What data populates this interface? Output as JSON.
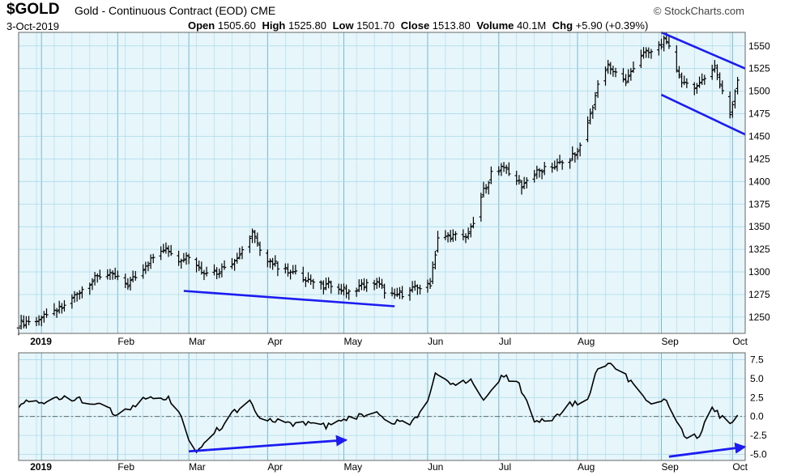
{
  "header": {
    "symbol": "$GOLD",
    "description": "Gold - Continuous Contract (EOD) CME",
    "date": "3-Oct-2019",
    "brand": "© StockCharts.com",
    "stats": [
      {
        "label": "Open",
        "value": "1505.60"
      },
      {
        "label": "High",
        "value": "1525.80"
      },
      {
        "label": "Low",
        "value": "1501.70"
      },
      {
        "label": "Close",
        "value": "1513.80"
      },
      {
        "label": "Volume",
        "value": "40.1M"
      },
      {
        "label": "Chg",
        "value": "+5.90 (+0.39%)"
      }
    ]
  },
  "colors": {
    "background": "#e6f6fa",
    "grid": "#a9d9eb",
    "bars": "#000000",
    "trendlines": "#1c1cf0"
  },
  "chart_data": [
    {
      "type": "ohlc",
      "x_axis": {
        "labels": [
          "2019",
          "Feb",
          "Mar",
          "Apr",
          "May",
          "Jun",
          "Jul",
          "Aug",
          "Sep",
          "Oct"
        ],
        "tick_dates": [
          "2019-01-02",
          "2019-02-01",
          "2019-03-01",
          "2019-04-01",
          "2019-05-01",
          "2019-06-03",
          "2019-07-01",
          "2019-08-01",
          "2019-09-03",
          "2019-10-01"
        ],
        "range": [
          "2018-12-24",
          "2019-10-06"
        ]
      },
      "y_axis": {
        "ticks": [
          1250,
          1275,
          1300,
          1325,
          1350,
          1375,
          1400,
          1425,
          1450,
          1475,
          1500,
          1525,
          1550
        ],
        "range": [
          1232,
          1565
        ]
      },
      "series": [
        {
          "values": [
            [
              "2018-12-24",
              1242
            ],
            [
              "2018-12-28",
              1246
            ],
            [
              "2019-01-04",
              1250
            ],
            [
              "2019-01-11",
              1262
            ],
            [
              "2019-01-18",
              1282
            ],
            [
              "2019-01-25",
              1296
            ],
            [
              "2019-01-31",
              1295
            ],
            [
              "2019-02-05",
              1286
            ],
            [
              "2019-02-12",
              1308
            ],
            [
              "2019-02-20",
              1328
            ],
            [
              "2019-02-25",
              1315
            ],
            [
              "2019-03-01",
              1318
            ],
            [
              "2019-03-06",
              1302
            ],
            [
              "2019-03-12",
              1300
            ],
            [
              "2019-03-20",
              1315
            ],
            [
              "2019-03-26",
              1345
            ],
            [
              "2019-03-29",
              1322
            ],
            [
              "2019-04-03",
              1310
            ],
            [
              "2019-04-09",
              1300
            ],
            [
              "2019-04-15",
              1295
            ],
            [
              "2019-04-23",
              1283
            ],
            [
              "2019-04-26",
              1287
            ],
            [
              "2019-05-02",
              1278
            ],
            [
              "2019-05-08",
              1285
            ],
            [
              "2019-05-14",
              1287
            ],
            [
              "2019-05-20",
              1273
            ],
            [
              "2019-05-28",
              1280
            ],
            [
              "2019-06-04",
              1288
            ],
            [
              "2019-06-07",
              1338
            ],
            [
              "2019-06-12",
              1340
            ],
            [
              "2019-06-17",
              1338
            ],
            [
              "2019-06-20",
              1346
            ],
            [
              "2019-06-25",
              1390
            ],
            [
              "2019-06-28",
              1408
            ],
            [
              "2019-07-03",
              1418
            ],
            [
              "2019-07-10",
              1396
            ],
            [
              "2019-07-16",
              1410
            ],
            [
              "2019-07-22",
              1417
            ],
            [
              "2019-07-26",
              1420
            ],
            [
              "2019-08-01",
              1432
            ],
            [
              "2019-08-05",
              1465
            ],
            [
              "2019-08-09",
              1505
            ],
            [
              "2019-08-13",
              1528
            ],
            [
              "2019-08-20",
              1510
            ],
            [
              "2019-08-26",
              1540
            ],
            [
              "2019-08-30",
              1543
            ],
            [
              "2019-09-04",
              1555
            ],
            [
              "2019-09-06",
              1547
            ],
            [
              "2019-09-10",
              1517
            ],
            [
              "2019-09-13",
              1505
            ],
            [
              "2019-09-18",
              1508
            ],
            [
              "2019-09-24",
              1528
            ],
            [
              "2019-09-27",
              1498
            ],
            [
              "2019-09-30",
              1475
            ],
            [
              "2019-10-03",
              1514
            ]
          ]
        }
      ],
      "annotations": [
        {
          "type": "trendline",
          "from": [
            "2019-02-27",
            1279
          ],
          "to": [
            "2019-05-21",
            1262
          ]
        },
        {
          "type": "trendline",
          "from": [
            "2019-09-03",
            1565
          ],
          "to": [
            "2019-10-06",
            1525
          ]
        },
        {
          "type": "trendline",
          "from": [
            "2019-09-03",
            1496
          ],
          "to": [
            "2019-10-06",
            1452
          ]
        }
      ]
    },
    {
      "type": "line",
      "x_axis": {
        "labels": [
          "2019",
          "Feb",
          "Mar",
          "Apr",
          "May",
          "Jun",
          "Jul",
          "Aug",
          "Sep",
          "Oct"
        ]
      },
      "y_axis": {
        "ticks": [
          -5.0,
          -2.5,
          0.0,
          2.5,
          5.0,
          7.5
        ],
        "tick_labels": [
          "-5.0",
          "-2.5",
          "0.0",
          "2.5",
          "5.0",
          "7.5"
        ],
        "range": [
          -5.8,
          8.4
        ]
      },
      "reference_line": 0.0,
      "series": [
        {
          "values": [
            [
              "2018-12-24",
              1.6
            ],
            [
              "2019-01-02",
              2.0
            ],
            [
              "2019-01-10",
              2.6
            ],
            [
              "2019-01-18",
              2.2
            ],
            [
              "2019-01-25",
              1.8
            ],
            [
              "2019-02-01",
              0.3
            ],
            [
              "2019-02-06",
              1.0
            ],
            [
              "2019-02-12",
              2.4
            ],
            [
              "2019-02-20",
              2.6
            ],
            [
              "2019-02-25",
              1.0
            ],
            [
              "2019-02-28",
              -2.5
            ],
            [
              "2019-03-04",
              -4.3
            ],
            [
              "2019-03-08",
              -3.0
            ],
            [
              "2019-03-14",
              -1.2
            ],
            [
              "2019-03-20",
              0.9
            ],
            [
              "2019-03-25",
              2.6
            ],
            [
              "2019-03-29",
              -0.4
            ],
            [
              "2019-04-05",
              -0.7
            ],
            [
              "2019-04-12",
              -1.2
            ],
            [
              "2019-04-18",
              -0.8
            ],
            [
              "2019-04-23",
              -1.3
            ],
            [
              "2019-04-30",
              -0.7
            ],
            [
              "2019-05-06",
              -0.1
            ],
            [
              "2019-05-13",
              0.8
            ],
            [
              "2019-05-20",
              -0.6
            ],
            [
              "2019-05-27",
              -0.9
            ],
            [
              "2019-06-03",
              1.8
            ],
            [
              "2019-06-06",
              5.5
            ],
            [
              "2019-06-13",
              4.4
            ],
            [
              "2019-06-20",
              4.8
            ],
            [
              "2019-06-26",
              2.1
            ],
            [
              "2019-07-02",
              5.6
            ],
            [
              "2019-07-09",
              4.2
            ],
            [
              "2019-07-15",
              -0.3
            ],
            [
              "2019-07-22",
              -0.6
            ],
            [
              "2019-07-29",
              1.6
            ],
            [
              "2019-08-05",
              2.1
            ],
            [
              "2019-08-08",
              6.0
            ],
            [
              "2019-08-14",
              7.2
            ],
            [
              "2019-08-20",
              5.2
            ],
            [
              "2019-08-26",
              3.0
            ],
            [
              "2019-08-30",
              1.8
            ],
            [
              "2019-09-04",
              2.3
            ],
            [
              "2019-09-09",
              -0.8
            ],
            [
              "2019-09-13",
              -3.1
            ],
            [
              "2019-09-18",
              -2.5
            ],
            [
              "2019-09-23",
              1.2
            ],
            [
              "2019-09-26",
              0.0
            ],
            [
              "2019-09-30",
              -1.3
            ],
            [
              "2019-10-03",
              -0.1
            ]
          ]
        }
      ],
      "annotations": [
        {
          "type": "arrow",
          "from": [
            "2019-03-01",
            -4.6
          ],
          "to": [
            "2019-05-02",
            -3.1
          ]
        },
        {
          "type": "arrow",
          "from": [
            "2019-09-06",
            -5.3
          ],
          "to": [
            "2019-10-06",
            -4.0
          ]
        }
      ]
    }
  ]
}
